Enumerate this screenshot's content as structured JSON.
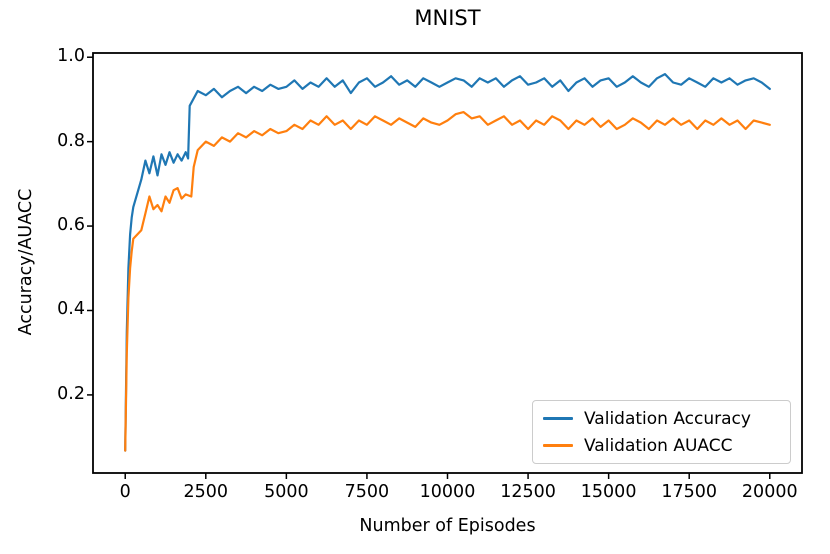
{
  "chart_data": {
    "type": "line",
    "title": "MNIST",
    "xlabel": "Number of Episodes",
    "ylabel": "Accuracy/AUACC",
    "xlim": [
      -1000,
      21000
    ],
    "ylim": [
      0.015,
      1.01
    ],
    "grid": false,
    "legend_position": "lower right",
    "background": "#ffffff",
    "axis_color": "#000000",
    "xticks": {
      "values": [
        0,
        2500,
        5000,
        7500,
        10000,
        12500,
        15000,
        17500,
        20000
      ],
      "labels": [
        "0",
        "2500",
        "5000",
        "7500",
        "10000",
        "12500",
        "15000",
        "17500",
        "20000"
      ]
    },
    "yticks": {
      "values": [
        0.2,
        0.4,
        0.6,
        0.8,
        1.0
      ],
      "labels": [
        "0.2",
        "0.4",
        "0.6",
        "0.8",
        "1.0"
      ]
    },
    "series": [
      {
        "name": "Validation Accuracy",
        "color": "#1f77b4",
        "x": [
          0,
          50,
          100,
          150,
          200,
          250,
          500,
          625,
          750,
          875,
          1000,
          1125,
          1250,
          1375,
          1500,
          1625,
          1750,
          1875,
          1950,
          2000,
          2250,
          2500,
          2750,
          3000,
          3250,
          3500,
          3750,
          4000,
          4250,
          4500,
          4750,
          5000,
          5250,
          5500,
          5750,
          6000,
          6250,
          6500,
          6750,
          7000,
          7250,
          7500,
          7750,
          8000,
          8250,
          8500,
          8750,
          9000,
          9250,
          9500,
          9750,
          10000,
          10250,
          10500,
          10750,
          11000,
          11250,
          11500,
          11750,
          12000,
          12250,
          12500,
          12750,
          13000,
          13250,
          13500,
          13750,
          14000,
          14250,
          14500,
          14750,
          15000,
          15250,
          15500,
          15750,
          16000,
          16250,
          16500,
          16750,
          17000,
          17250,
          17500,
          17750,
          18000,
          18250,
          18500,
          18750,
          19000,
          19250,
          19500,
          19750,
          20000
        ],
        "y": [
          0.068,
          0.35,
          0.5,
          0.58,
          0.62,
          0.645,
          0.71,
          0.755,
          0.725,
          0.765,
          0.72,
          0.77,
          0.745,
          0.775,
          0.75,
          0.77,
          0.755,
          0.775,
          0.76,
          0.885,
          0.92,
          0.91,
          0.925,
          0.905,
          0.92,
          0.93,
          0.915,
          0.93,
          0.92,
          0.935,
          0.925,
          0.93,
          0.945,
          0.925,
          0.94,
          0.93,
          0.95,
          0.93,
          0.945,
          0.915,
          0.94,
          0.95,
          0.93,
          0.94,
          0.955,
          0.935,
          0.945,
          0.93,
          0.95,
          0.94,
          0.93,
          0.94,
          0.95,
          0.945,
          0.93,
          0.95,
          0.94,
          0.95,
          0.93,
          0.945,
          0.955,
          0.935,
          0.94,
          0.95,
          0.93,
          0.945,
          0.92,
          0.94,
          0.95,
          0.93,
          0.945,
          0.95,
          0.93,
          0.94,
          0.955,
          0.94,
          0.93,
          0.95,
          0.96,
          0.94,
          0.935,
          0.95,
          0.94,
          0.93,
          0.95,
          0.94,
          0.95,
          0.935,
          0.945,
          0.95,
          0.94,
          0.925
        ]
      },
      {
        "name": "Validation AUACC",
        "color": "#ff7f0e",
        "x": [
          0,
          50,
          100,
          150,
          200,
          250,
          500,
          625,
          750,
          875,
          1000,
          1125,
          1250,
          1375,
          1500,
          1625,
          1750,
          1875,
          2050,
          2125,
          2250,
          2500,
          2750,
          3000,
          3250,
          3500,
          3750,
          4000,
          4250,
          4500,
          4750,
          5000,
          5250,
          5500,
          5750,
          6000,
          6250,
          6500,
          6750,
          7000,
          7250,
          7500,
          7750,
          8000,
          8250,
          8500,
          8750,
          9000,
          9250,
          9500,
          9750,
          10000,
          10250,
          10500,
          10750,
          11000,
          11250,
          11500,
          11750,
          12000,
          12250,
          12500,
          12750,
          13000,
          13250,
          13500,
          13750,
          14000,
          14250,
          14500,
          14750,
          15000,
          15250,
          15500,
          15750,
          16000,
          16250,
          16500,
          16750,
          17000,
          17250,
          17500,
          17750,
          18000,
          18250,
          18500,
          18750,
          19000,
          19250,
          19500,
          19750,
          20000
        ],
        "y": [
          0.068,
          0.3,
          0.43,
          0.5,
          0.54,
          0.57,
          0.59,
          0.63,
          0.67,
          0.64,
          0.65,
          0.635,
          0.67,
          0.655,
          0.685,
          0.69,
          0.665,
          0.675,
          0.67,
          0.74,
          0.78,
          0.8,
          0.79,
          0.81,
          0.8,
          0.82,
          0.81,
          0.825,
          0.815,
          0.83,
          0.82,
          0.825,
          0.84,
          0.83,
          0.85,
          0.84,
          0.86,
          0.84,
          0.85,
          0.83,
          0.85,
          0.84,
          0.86,
          0.85,
          0.84,
          0.855,
          0.845,
          0.835,
          0.855,
          0.845,
          0.84,
          0.85,
          0.865,
          0.87,
          0.855,
          0.86,
          0.84,
          0.85,
          0.86,
          0.84,
          0.85,
          0.83,
          0.85,
          0.84,
          0.86,
          0.85,
          0.83,
          0.85,
          0.84,
          0.855,
          0.835,
          0.85,
          0.83,
          0.84,
          0.855,
          0.845,
          0.83,
          0.85,
          0.84,
          0.855,
          0.84,
          0.85,
          0.83,
          0.85,
          0.84,
          0.855,
          0.84,
          0.85,
          0.83,
          0.85,
          0.845,
          0.84
        ]
      }
    ]
  }
}
